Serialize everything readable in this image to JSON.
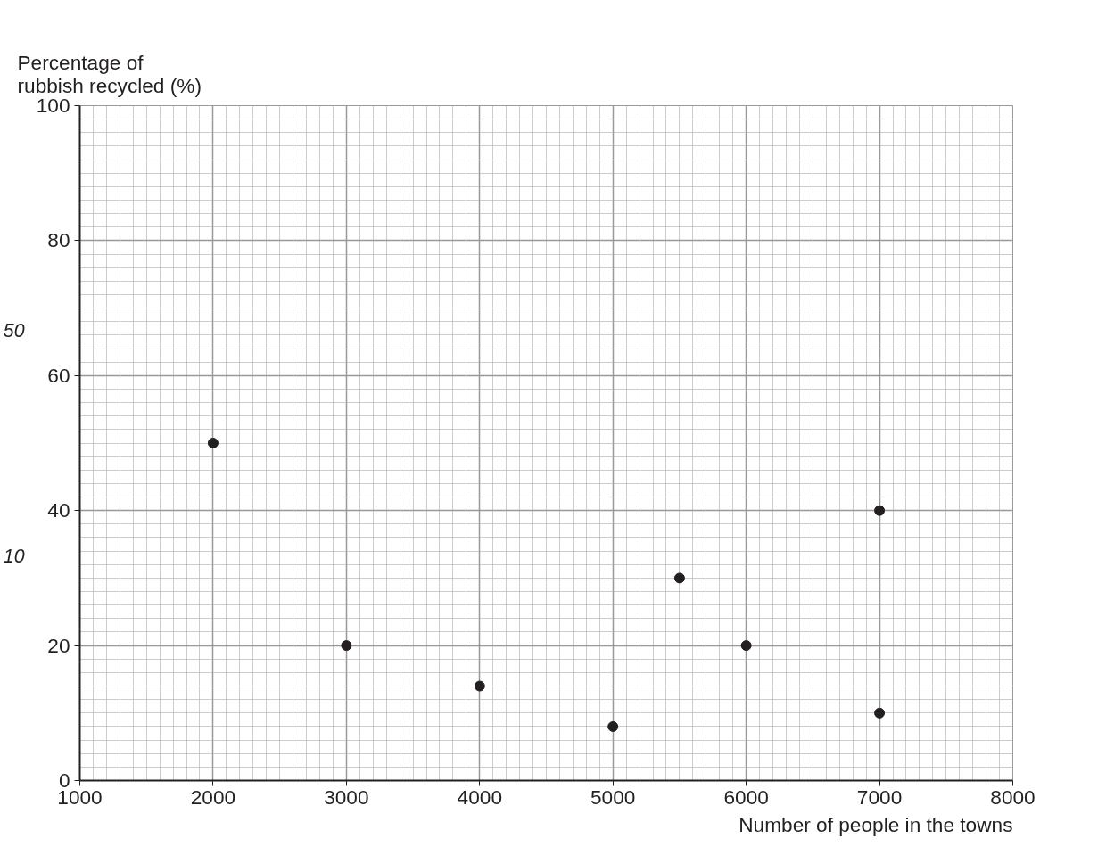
{
  "chart_data": {
    "type": "scatter",
    "xlabel": "Number of people in the towns",
    "ylabel": "Percentage of\nrubbish recycled (%)",
    "x": [
      2000,
      3000,
      4000,
      5000,
      5500,
      6000,
      7000,
      7000
    ],
    "series": [
      {
        "color": "#231f20",
        "values": [
          50,
          20,
          14,
          8,
          30,
          20,
          40,
          10
        ]
      }
    ],
    "xlim": [
      1000,
      8000
    ],
    "ylim": [
      0,
      100
    ],
    "xticks": [
      1000,
      2000,
      3000,
      4000,
      5000,
      6000,
      7000,
      8000
    ],
    "yticks": [
      0,
      20,
      40,
      60,
      80,
      100
    ],
    "grid": true,
    "marker": "circle",
    "annotations": [
      "50",
      "10"
    ]
  }
}
